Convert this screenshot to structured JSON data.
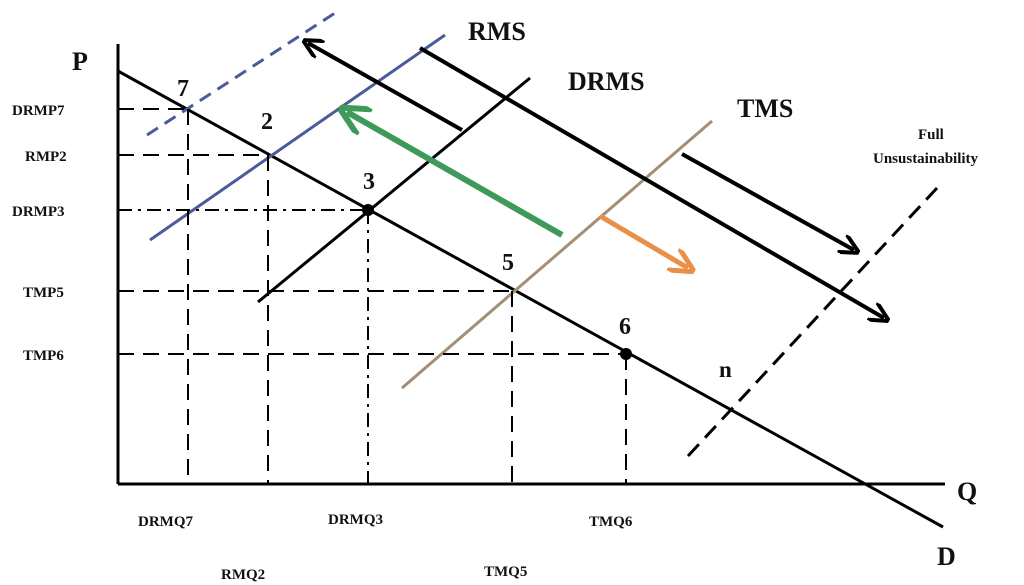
{
  "axes": {
    "y_label": "P",
    "x_label": "Q"
  },
  "curves": {
    "demand": "D",
    "rms": "RMS",
    "drms": "DRMS",
    "tms": "TMS",
    "full_unsustainability": [
      "Full",
      "Unsustainability"
    ],
    "n_label": "n"
  },
  "price_labels": [
    "DRMP7",
    "RMP2",
    "DRMP3",
    "TMP5",
    "TMP6"
  ],
  "quantity_labels": [
    "DRMQ7",
    "RMQ2",
    "DRMQ3",
    "TMQ5",
    "TMQ6"
  ],
  "points": [
    "7",
    "2",
    "3",
    "5",
    "6"
  ],
  "colors": {
    "rms_line": "#4a5a9a",
    "tms_line": "#a38e76",
    "green_arrow": "#3f9a5a",
    "orange_arrow": "#e8904a",
    "black": "#000000"
  }
}
